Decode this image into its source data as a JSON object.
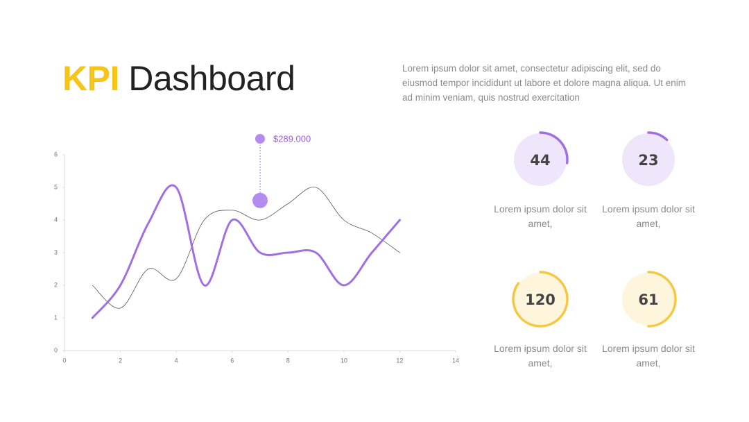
{
  "header": {
    "accent": "KPI",
    "title": "Dashboard",
    "description": "Lorem ipsum dolor sit amet, consectetur adipiscing elit, sed do eiusmod tempor incididunt ut labore et dolore magna aliqua. Ut enim ad minim veniam, quis nostrud exercitation"
  },
  "chart_data": {
    "type": "line",
    "x": [
      1,
      2,
      3,
      4,
      5,
      6,
      7,
      8,
      9,
      10,
      11,
      12
    ],
    "series": [
      {
        "color": "#555555",
        "values": [
          2,
          1.3,
          2.5,
          2.2,
          4,
          4.3,
          4,
          4.5,
          5,
          4,
          3.6,
          3
        ]
      },
      {
        "color": "#a070e0",
        "values": [
          1,
          2,
          3.9,
          5,
          2,
          4,
          3,
          3,
          3,
          2,
          3,
          4
        ]
      }
    ],
    "xlim": [
      0,
      14
    ],
    "xticks": [
      0,
      2,
      4,
      6,
      8,
      10,
      12,
      14
    ],
    "ylim": [
      0,
      6
    ],
    "yticks": [
      0,
      1,
      2,
      3,
      4,
      5,
      6
    ],
    "annotation": {
      "text": "$289.000",
      "x": 7,
      "y": 4.6
    }
  },
  "kpis": [
    {
      "value": "44",
      "progress": 27,
      "color": "#a070e0",
      "background": "#efe6fb",
      "label": "Lorem ipsum dolor sit amet,"
    },
    {
      "value": "23",
      "progress": 12,
      "color": "#a070e0",
      "background": "#efe6fb",
      "label": "Lorem ipsum dolor sit amet,"
    },
    {
      "value": "120",
      "progress": 85,
      "color": "#f5c842",
      "background": "#fdf5dc",
      "label": "Lorem ipsum dolor sit amet,"
    },
    {
      "value": "61",
      "progress": 50,
      "color": "#f5c842",
      "background": "#fdf5dc",
      "label": "Lorem ipsum dolor sit amet,"
    }
  ]
}
